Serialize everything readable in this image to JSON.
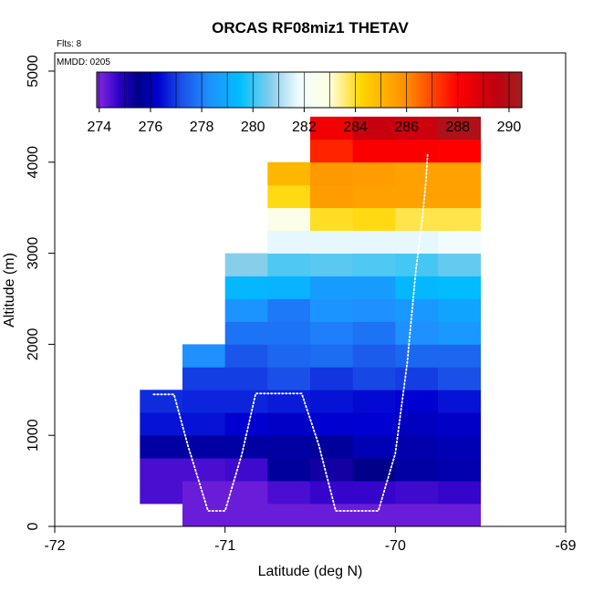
{
  "chart_data": {
    "type": "heatmap",
    "title": "ORCAS RF08miz1 THETAV",
    "xlabel": "Latitude (deg N)",
    "ylabel": "Altitude (m)",
    "xlim": [
      -72,
      -69
    ],
    "ylim": [
      0,
      5200
    ],
    "x_ticks": [
      -72,
      -71,
      -70,
      -69
    ],
    "x_tick_labels": [
      "-72",
      "-71",
      "-70",
      "-69"
    ],
    "y_ticks": [
      0,
      1000,
      2000,
      3000,
      4000,
      5000
    ],
    "y_tick_labels": [
      "0",
      "1000",
      "2000",
      "3000",
      "4000",
      "5000"
    ],
    "annotations": {
      "flights": "Flts: 8",
      "date": "MMDD: 0205"
    },
    "colorbar": {
      "min": 273.9,
      "max": 290.5,
      "ticks": [
        274,
        276,
        278,
        280,
        282,
        284,
        286,
        288,
        290
      ],
      "tick_labels": [
        "274",
        "276",
        "278",
        "280",
        "282",
        "284",
        "286",
        "288",
        "290"
      ],
      "stops": [
        {
          "v": 273.9,
          "c": "#8a2be2"
        },
        {
          "v": 274.8,
          "c": "#2a00c8"
        },
        {
          "v": 275.5,
          "c": "#000088"
        },
        {
          "v": 276.3,
          "c": "#0000d0"
        },
        {
          "v": 277.2,
          "c": "#1a50e8"
        },
        {
          "v": 278.3,
          "c": "#1e90ff"
        },
        {
          "v": 279.5,
          "c": "#00bfff"
        },
        {
          "v": 280.7,
          "c": "#87ceeb"
        },
        {
          "v": 281.8,
          "c": "#f0fcff"
        },
        {
          "v": 283.0,
          "c": "#ffffe0"
        },
        {
          "v": 284.2,
          "c": "#ffd700"
        },
        {
          "v": 286.0,
          "c": "#ff8c00"
        },
        {
          "v": 288.0,
          "c": "#ff0000"
        },
        {
          "v": 289.5,
          "c": "#c00010"
        },
        {
          "v": 290.5,
          "c": "#a02020"
        }
      ]
    },
    "cell_size": {
      "lat": 0.25,
      "alt": 250
    },
    "grid": [
      {
        "lat": -71.5,
        "alt": 250,
        "values": [
          274.5,
          274.5,
          275.8,
          276.5,
          276.8
        ]
      },
      {
        "lat": -71.25,
        "alt": 0,
        "values": [
          274.2,
          274.2,
          274.5,
          275.8,
          276.5,
          276.7,
          277.0,
          278.3
        ]
      },
      {
        "lat": -71.0,
        "alt": 0,
        "values": [
          274.2,
          274.2,
          274.6,
          275.8,
          276.3,
          276.7,
          277.0,
          277.3,
          277.8,
          278.4,
          279.3,
          280.7
        ]
      },
      {
        "lat": -70.75,
        "alt": 0,
        "values": [
          274.2,
          274.5,
          275.7,
          275.8,
          276.2,
          276.6,
          277.2,
          277.6,
          277.8,
          277.9,
          279.2,
          280.2,
          281.7,
          282.7,
          284.1,
          285.0
        ]
      },
      {
        "lat": -70.5,
        "alt": 0,
        "values": [
          274.2,
          274.7,
          275.2,
          275.7,
          276.3,
          276.5,
          276.9,
          277.7,
          278.0,
          278.4,
          278.6,
          280.3,
          281.7,
          284.0,
          285.6,
          285.7,
          287.5,
          288.3
        ]
      },
      {
        "lat": -70.25,
        "alt": 0,
        "values": [
          274.2,
          274.7,
          275.5,
          276.0,
          276.3,
          276.4,
          277.1,
          277.4,
          277.8,
          278.3,
          278.6,
          280.2,
          281.7,
          284.1,
          285.5,
          285.6,
          288.1,
          289.3
        ]
      },
      {
        "lat": -70.0,
        "alt": 0,
        "values": [
          274.2,
          274.6,
          275.8,
          275.9,
          276.1,
          276.3,
          277.0,
          277.6,
          278.3,
          278.5,
          279.3,
          280.1,
          281.7,
          283.8,
          285.5,
          285.5,
          288.1,
          289.2
        ]
      },
      {
        "lat": -69.75,
        "alt": 0,
        "values": [
          274.2,
          274.7,
          275.9,
          276.0,
          276.2,
          276.5,
          277.2,
          277.6,
          278.5,
          278.8,
          279.4,
          280.4,
          281.8,
          283.8,
          285.5,
          285.5,
          288.0,
          290.0
        ]
      }
    ],
    "flight_track": {
      "lat": [
        -71.42,
        -71.3,
        -71.22,
        -71.1,
        -71.0,
        -70.9,
        -70.82,
        -70.7,
        -70.65,
        -70.55,
        -70.45,
        -70.35,
        -70.22,
        -70.1,
        -70.0,
        -69.93,
        -69.88,
        -69.84,
        -69.82,
        -69.81
      ],
      "alt": [
        1450,
        1450,
        900,
        170,
        170,
        800,
        1460,
        1460,
        1460,
        1460,
        900,
        170,
        170,
        170,
        800,
        1800,
        2800,
        3400,
        3800,
        4100
      ]
    }
  }
}
